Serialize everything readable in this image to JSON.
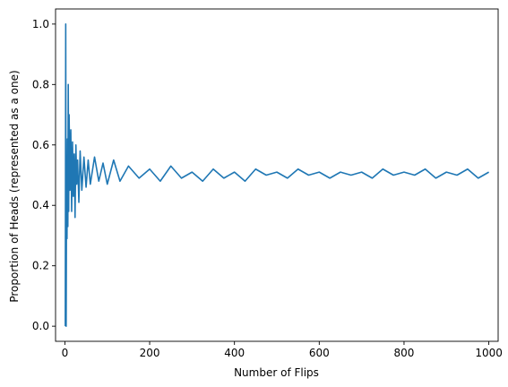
{
  "chart_data": {
    "type": "line",
    "title": "",
    "xlabel": "Number of Flips",
    "ylabel": "Proportion of Heads (represented as a one)",
    "xlim": [
      -22,
      1022
    ],
    "ylim": [
      -0.05,
      1.05
    ],
    "xticks": [
      0,
      200,
      400,
      600,
      800,
      1000
    ],
    "yticks": [
      0.0,
      0.2,
      0.4,
      0.6,
      0.8,
      1.0
    ],
    "xtick_labels": [
      "0",
      "200",
      "400",
      "600",
      "800",
      "1000"
    ],
    "ytick_labels": [
      "0.0",
      "0.2",
      "0.4",
      "0.6",
      "0.8",
      "1.0"
    ],
    "grid": false,
    "line_color": "#1f77b4",
    "series": [
      {
        "x": [
          1,
          2,
          3,
          4,
          5,
          6,
          7,
          8,
          9,
          10,
          12,
          14,
          16,
          18,
          20,
          22,
          24,
          26,
          28,
          30,
          33,
          36,
          40,
          45,
          50,
          55,
          60,
          70,
          80,
          90,
          100,
          115,
          130,
          150,
          175,
          200,
          225,
          250,
          275,
          300,
          325,
          350,
          375,
          400,
          425,
          450,
          475,
          500,
          525,
          550,
          575,
          600,
          625,
          650,
          675,
          700,
          725,
          750,
          775,
          800,
          825,
          850,
          875,
          900,
          925,
          950,
          975,
          1000
        ],
        "y": [
          0.0,
          1.0,
          0.0,
          0.5,
          0.29,
          0.62,
          0.33,
          0.8,
          0.38,
          0.7,
          0.45,
          0.65,
          0.38,
          0.61,
          0.43,
          0.57,
          0.36,
          0.6,
          0.47,
          0.55,
          0.41,
          0.58,
          0.45,
          0.56,
          0.46,
          0.55,
          0.47,
          0.56,
          0.48,
          0.54,
          0.47,
          0.55,
          0.48,
          0.53,
          0.49,
          0.52,
          0.48,
          0.53,
          0.49,
          0.51,
          0.48,
          0.52,
          0.49,
          0.51,
          0.48,
          0.52,
          0.5,
          0.51,
          0.49,
          0.52,
          0.5,
          0.51,
          0.49,
          0.51,
          0.5,
          0.51,
          0.49,
          0.52,
          0.5,
          0.51,
          0.5,
          0.52,
          0.49,
          0.51,
          0.5,
          0.52,
          0.49,
          0.51
        ]
      }
    ]
  }
}
